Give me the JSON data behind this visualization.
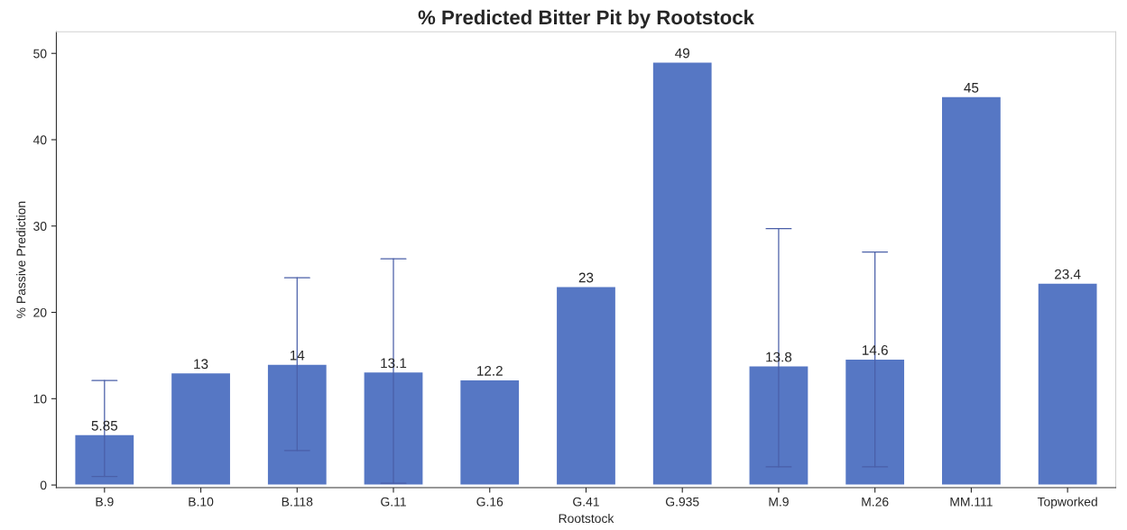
{
  "chart_data": {
    "type": "bar",
    "title": "% Predicted Bitter Pit by Rootstock",
    "xlabel": "Rootstock",
    "ylabel": "% Passive Prediction",
    "categories": [
      "B.9",
      "B.10",
      "B.118",
      "G.11",
      "G.16",
      "G.41",
      "G.935",
      "M.9",
      "M.26",
      "MM.111",
      "Topworked"
    ],
    "values": [
      5.85,
      13,
      14,
      13.1,
      12.2,
      23,
      49,
      13.8,
      14.6,
      45,
      23.4
    ],
    "errors": [
      [
        1,
        12.1
      ],
      null,
      [
        4,
        24
      ],
      [
        0.2,
        26.2
      ],
      null,
      null,
      null,
      [
        2.1,
        29.7
      ],
      [
        2.1,
        27
      ],
      null,
      null
    ],
    "color": "#5677c4",
    "data_labels": true,
    "ylim": [
      -0.3,
      52.5
    ],
    "yticks": [
      0,
      10,
      20,
      30,
      40,
      50
    ],
    "grid": false
  }
}
